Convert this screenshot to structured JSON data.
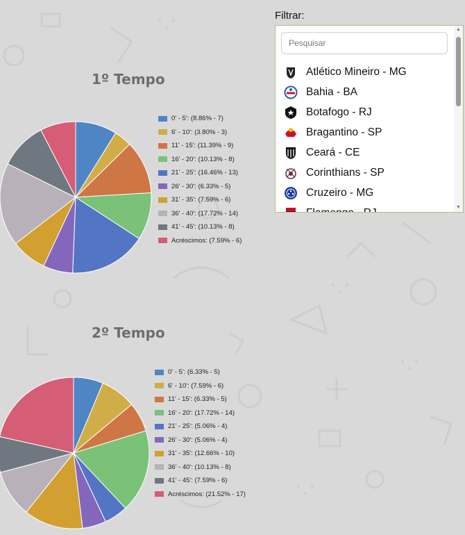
{
  "filter": {
    "label": "Filtrar:",
    "search_placeholder": "Pesquisar",
    "teams": [
      {
        "name": "Atlético Mineiro - MG",
        "icon": "atletico-mineiro-badge-icon",
        "color": "#222222"
      },
      {
        "name": "Bahia - BA",
        "icon": "bahia-badge-icon",
        "color": "#1f5fb0"
      },
      {
        "name": "Botafogo - RJ",
        "icon": "botafogo-badge-icon",
        "color": "#111111"
      },
      {
        "name": "Bragantino - SP",
        "icon": "bragantino-badge-icon",
        "color": "#d0102a"
      },
      {
        "name": "Ceará - CE",
        "icon": "ceara-badge-icon",
        "color": "#111111"
      },
      {
        "name": "Corinthians - SP",
        "icon": "corinthians-badge-icon",
        "color": "#444444"
      },
      {
        "name": "Cruzeiro - MG",
        "icon": "cruzeiro-badge-icon",
        "color": "#1d3a9c"
      },
      {
        "name": "Flamengo - RJ",
        "icon": "flamengo-badge-icon",
        "color": "#c8102e"
      }
    ]
  },
  "chart_data": [
    {
      "type": "pie",
      "title": "1º Tempo",
      "legend_position": "right",
      "categories": [
        "0' - 5'",
        "6' - 10'",
        "11' - 15'",
        "16' - 20'",
        "21' - 25'",
        "26' - 30'",
        "31' - 35'",
        "36' - 40'",
        "41' - 45'",
        "Acréscimos"
      ],
      "values": [
        7,
        3,
        9,
        8,
        13,
        5,
        6,
        14,
        8,
        6
      ],
      "legend_labels": [
        "0' - 5': (8.86% - 7)",
        "6' - 10': (3.80% - 3)",
        "11' - 15': (11.39% - 9)",
        "16' - 20': (10.13% - 8)",
        "21' - 25': (16.46% - 13)",
        "26' - 30': (6.33% - 5)",
        "31' - 35': (7.59% - 6)",
        "36' - 40': (17.72% - 14)",
        "41' - 45': (10.13% - 8)",
        "Acréscimos: (7.59% - 6)"
      ],
      "colors": [
        "#4e86c5",
        "#d1ad48",
        "#cf7645",
        "#79c278",
        "#5375c4",
        "#8467bd",
        "#d1a030",
        "#b8b1b9",
        "#6f7880",
        "#d55d76"
      ]
    },
    {
      "type": "pie",
      "title": "2º Tempo",
      "legend_position": "right",
      "categories": [
        "0' - 5'",
        "6' - 10'",
        "11' - 15'",
        "16' - 20'",
        "21' - 25'",
        "26' - 30'",
        "31' - 35'",
        "36' - 40'",
        "41' - 45'",
        "Acréscimos"
      ],
      "values": [
        5,
        6,
        5,
        14,
        4,
        4,
        10,
        8,
        6,
        17
      ],
      "legend_labels": [
        "0' - 5': (6.33% - 5)",
        "6' - 10': (7.59% - 6)",
        "11' - 15': (6.33% - 5)",
        "16' - 20': (17.72% - 14)",
        "21' - 25': (5.06% - 4)",
        "26' - 30': (5.06% - 4)",
        "31' - 35': (12.66% - 10)",
        "36' - 40': (10.13% - 8)",
        "41' - 45': (7.59% - 6)",
        "Acréscimos: (21.52% - 17)"
      ],
      "colors": [
        "#4e86c5",
        "#d1ad48",
        "#cf7645",
        "#79c278",
        "#5375c4",
        "#8467bd",
        "#d1a030",
        "#b8b1b9",
        "#6f7880",
        "#d55d76"
      ]
    }
  ]
}
